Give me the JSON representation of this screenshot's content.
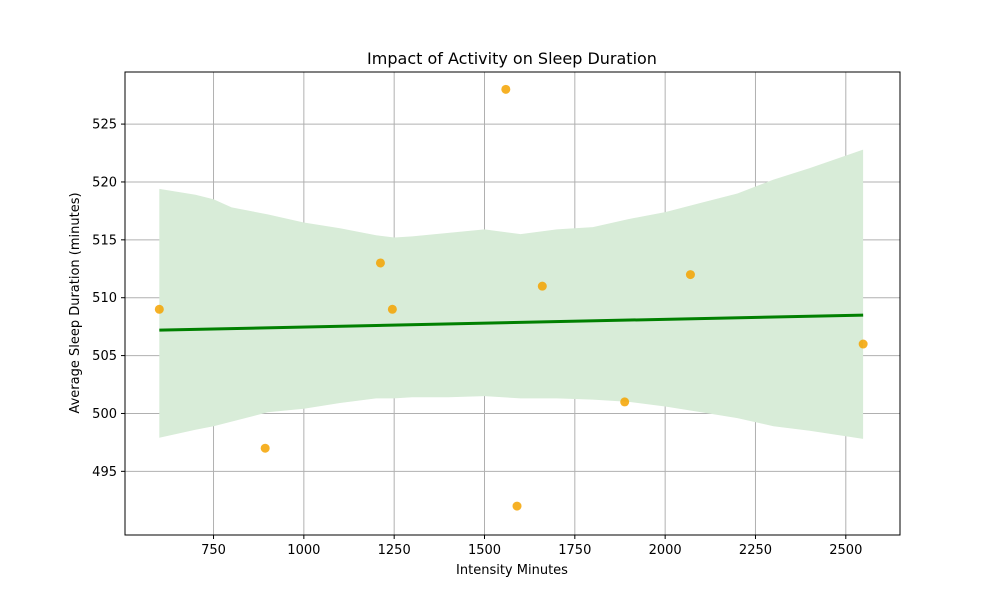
{
  "chart_data": {
    "type": "scatter",
    "title": "Impact of Activity on Sleep Duration",
    "xlabel": "Intensity Minutes",
    "ylabel": "Average Sleep Duration (minutes)",
    "xlim": [
      505,
      2650
    ],
    "ylim": [
      489.5,
      529.5
    ],
    "xticks": [
      750,
      1000,
      1250,
      1500,
      1750,
      2000,
      2250,
      2500
    ],
    "yticks": [
      495,
      500,
      505,
      510,
      515,
      520,
      525
    ],
    "grid": true,
    "colors": {
      "points": "#f5a300",
      "trend": "#008000",
      "band": "#d8ecd8"
    },
    "points": [
      {
        "x": 600,
        "y": 509
      },
      {
        "x": 893,
        "y": 497
      },
      {
        "x": 1212,
        "y": 513
      },
      {
        "x": 1245,
        "y": 509
      },
      {
        "x": 1559,
        "y": 528
      },
      {
        "x": 1590,
        "y": 492
      },
      {
        "x": 1660,
        "y": 511
      },
      {
        "x": 1888,
        "y": 501
      },
      {
        "x": 2070,
        "y": 512
      },
      {
        "x": 2548,
        "y": 506
      }
    ],
    "trend_line": {
      "x": [
        600,
        2548
      ],
      "y": [
        507.2,
        508.5
      ]
    },
    "confidence_band": {
      "x": [
        600,
        700,
        750,
        800,
        900,
        1000,
        1100,
        1200,
        1250,
        1300,
        1400,
        1500,
        1600,
        1700,
        1800,
        1900,
        2000,
        2100,
        2200,
        2300,
        2400,
        2548
      ],
      "upper": [
        519.4,
        518.9,
        518.5,
        517.8,
        517.2,
        516.5,
        516.0,
        515.4,
        515.2,
        515.3,
        515.6,
        515.9,
        515.5,
        515.9,
        516.1,
        516.8,
        517.4,
        518.2,
        519.0,
        520.2,
        521.2,
        522.8
      ],
      "lower": [
        497.9,
        498.6,
        498.9,
        499.3,
        500.1,
        500.4,
        500.9,
        501.3,
        501.3,
        501.4,
        501.4,
        501.5,
        501.3,
        501.3,
        501.2,
        501.0,
        500.6,
        500.1,
        499.6,
        498.9,
        498.5,
        497.8
      ]
    }
  }
}
